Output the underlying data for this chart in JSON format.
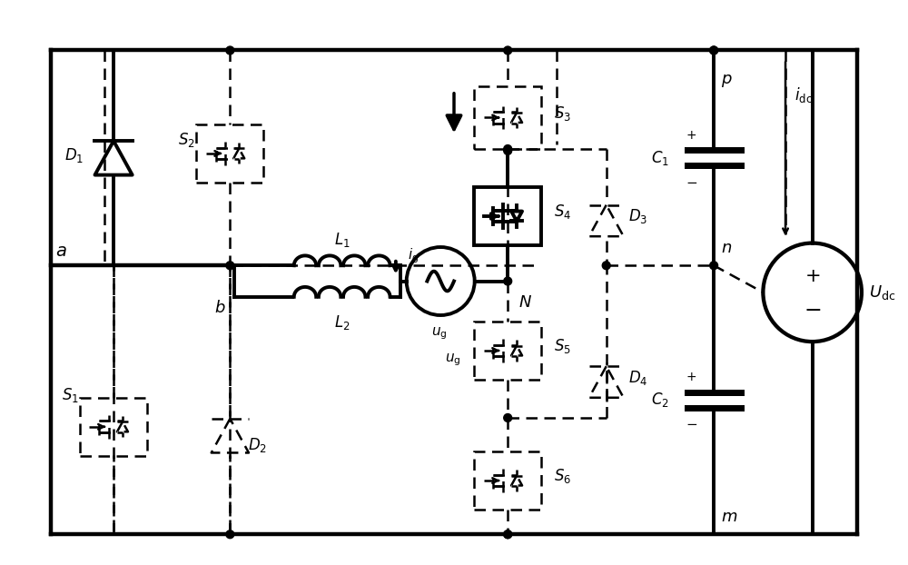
{
  "bg": "#ffffff",
  "lc": "#000000",
  "slw": 2.8,
  "dlw": 1.8,
  "figw": 10.0,
  "figh": 6.22,
  "dpi": 100
}
